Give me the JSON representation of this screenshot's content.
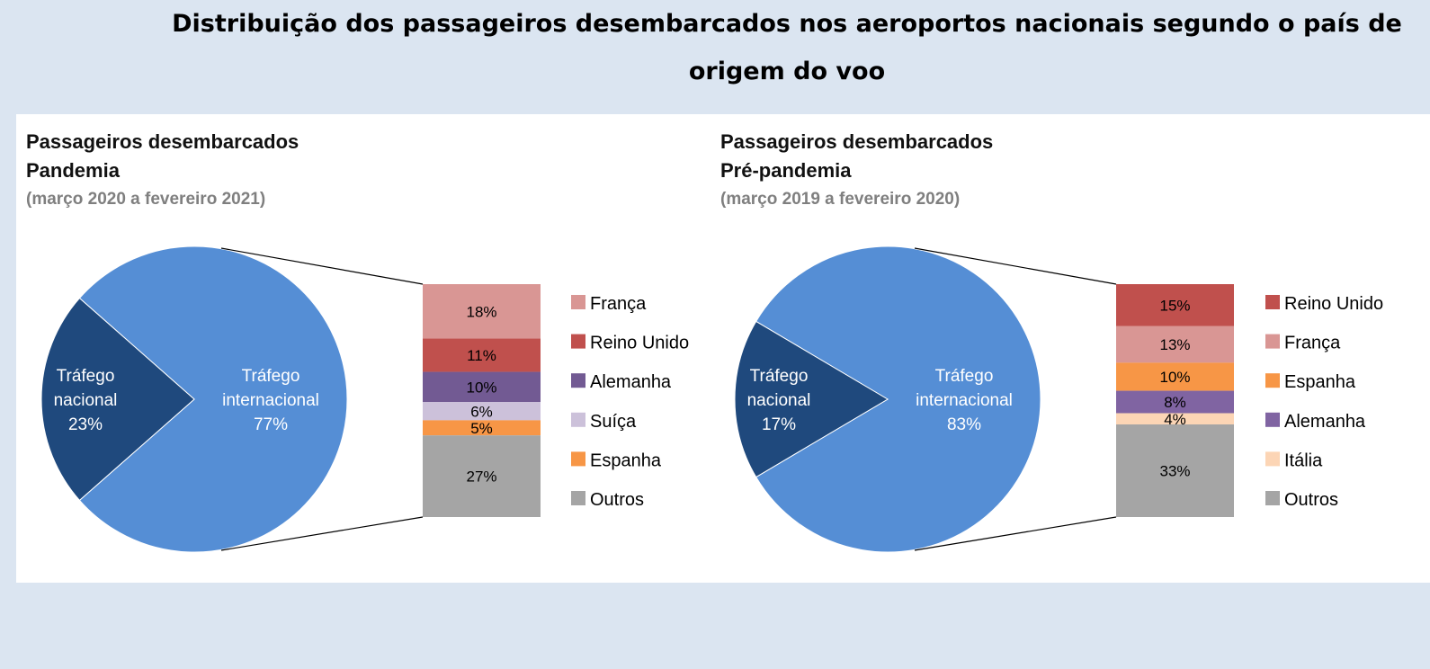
{
  "title": "Distribuição dos passageiros desembarcados nos aeroportos nacionais segundo o país de origem do voo",
  "chart_data": [
    {
      "type": "pie",
      "title": "Passageiros desembarcados",
      "subtitle": "Pandemia",
      "period": "(março 2020 a fevereiro 2021)",
      "slices": [
        {
          "label": "Tráfego nacional",
          "value": 23,
          "value_label": "23%",
          "color": "#1f497d"
        },
        {
          "label": "Tráfego internacional",
          "value": 77,
          "value_label": "77%",
          "color": "#558ed5"
        }
      ],
      "breakdown": [
        {
          "label": "França",
          "value": 18,
          "value_label": "18%",
          "color": "#d99694"
        },
        {
          "label": "Reino Unido",
          "value": 11,
          "value_label": "11%",
          "color": "#c0504d"
        },
        {
          "label": "Alemanha",
          "value": 10,
          "value_label": "10%",
          "color": "#725a93"
        },
        {
          "label": "Suíça",
          "value": 6,
          "value_label": "6%",
          "color": "#ccc1da"
        },
        {
          "label": "Espanha",
          "value": 5,
          "value_label": "5%",
          "color": "#f79646"
        },
        {
          "label": "Outros",
          "value": 27,
          "value_label": "27%",
          "color": "#a5a5a5"
        }
      ]
    },
    {
      "type": "pie",
      "title": "Passageiros desembarcados",
      "subtitle": "Pré-pandemia",
      "period": "(março 2019 a fevereiro 2020)",
      "slices": [
        {
          "label": "Tráfego nacional",
          "value": 17,
          "value_label": "17%",
          "color": "#1f497d"
        },
        {
          "label": "Tráfego internacional",
          "value": 83,
          "value_label": "83%",
          "color": "#558ed5"
        }
      ],
      "breakdown": [
        {
          "label": "Reino Unido",
          "value": 15,
          "value_label": "15%",
          "color": "#c0504d"
        },
        {
          "label": "França",
          "value": 13,
          "value_label": "13%",
          "color": "#d99694"
        },
        {
          "label": "Espanha",
          "value": 10,
          "value_label": "10%",
          "color": "#f79646"
        },
        {
          "label": "Alemanha",
          "value": 8,
          "value_label": "8%",
          "color": "#8064a2"
        },
        {
          "label": "Itália",
          "value": 4,
          "value_label": "4%",
          "color": "#fcd5b5"
        },
        {
          "label": "Outros",
          "value": 33,
          "value_label": "33%",
          "color": "#a5a5a5"
        }
      ]
    }
  ]
}
